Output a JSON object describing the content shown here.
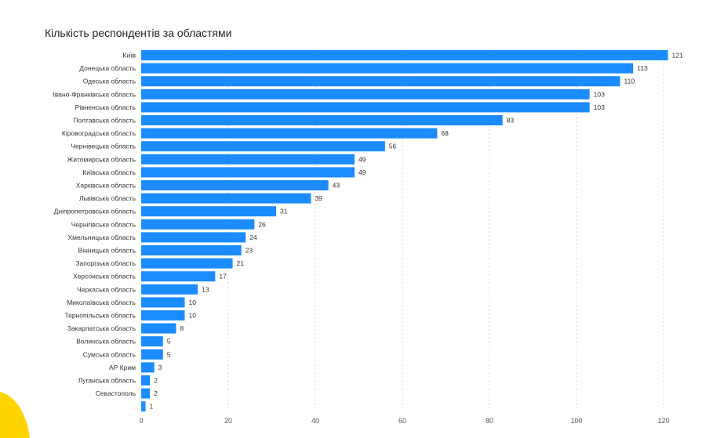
{
  "chart_data": {
    "type": "bar",
    "orientation": "horizontal",
    "title": "Кількість респондентів за областями",
    "xlabel": "",
    "ylabel": "",
    "xlim": [
      0,
      120
    ],
    "x_ticks": [
      0,
      20,
      40,
      60,
      80,
      100,
      120
    ],
    "grid": "vertical dashed",
    "bar_color": "#1a8cff",
    "categories": [
      "Київ",
      "Донецька область",
      "Одеська область",
      "Івано-Франківська область",
      "Рівненська область",
      "Полтавська область",
      "Кіровоградська область",
      "Чернівецька область",
      "Житомирська область",
      "Київська область",
      "Харківська область",
      "Львівська область",
      "Дніпропетровська область",
      "Чернігівська область",
      "Хмельницька область",
      "Вінницька область",
      "Запорізька область",
      "Херсонська область",
      "Черкаська область",
      "Миколаївська область",
      "Тернопільська область",
      "Закарпатська область",
      "Волинська область",
      "Сумська область",
      "АР Крим",
      "Луганська область",
      "Севастополь",
      ""
    ],
    "values": [
      121,
      113,
      110,
      103,
      103,
      83,
      68,
      56,
      49,
      49,
      43,
      39,
      31,
      26,
      24,
      23,
      21,
      17,
      13,
      10,
      10,
      8,
      5,
      5,
      3,
      2,
      2,
      1
    ]
  },
  "decor": {
    "accent_color": "#ffd500"
  }
}
